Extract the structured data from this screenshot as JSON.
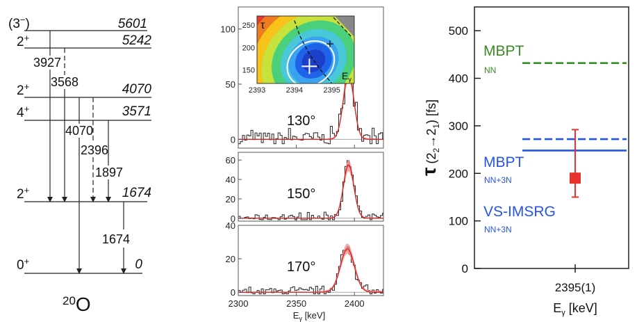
{
  "level_scheme": {
    "nucleus": {
      "mass": "20",
      "symbol": "O"
    },
    "levels": [
      {
        "jpi_main": "(3",
        "jpi_sup": "−",
        "jpi_close": ")",
        "energy": "5601"
      },
      {
        "jpi_main": "2",
        "jpi_sup": "+",
        "jpi_close": "",
        "energy": "5242"
      },
      {
        "jpi_main": "2",
        "jpi_sup": "+",
        "jpi_close": "",
        "energy": "4070"
      },
      {
        "jpi_main": "4",
        "jpi_sup": "+",
        "jpi_close": "",
        "energy": "3571"
      },
      {
        "jpi_main": "2",
        "jpi_sup": "+",
        "jpi_close": "",
        "energy": "1674"
      },
      {
        "jpi_main": "0",
        "jpi_sup": "+",
        "jpi_close": "",
        "energy": "0"
      }
    ],
    "transitions": [
      {
        "label": "3927"
      },
      {
        "label": "3568"
      },
      {
        "label": "4070"
      },
      {
        "label": "2396"
      },
      {
        "label": "1897"
      },
      {
        "label": "1674"
      }
    ]
  },
  "chart_data": [
    {
      "type": "line",
      "panel": "inset",
      "y_axis_label": "τ",
      "x_axis_label_main": "E",
      "x_axis_label_sub": "γ",
      "xlim": [
        2393,
        2395.6
      ],
      "ylim": [
        120,
        270
      ],
      "x_ticks": [
        2393,
        2394,
        2395
      ],
      "y_ticks": [
        150,
        200,
        250
      ],
      "best_fit": {
        "x": 2394.4,
        "y": 158
      },
      "alt_point": {
        "x": 2394.95,
        "y": 208
      },
      "dashed_curve": {
        "x": [
          2394.0,
          2394.15,
          2394.4,
          2394.7,
          2395.0
        ],
        "y": [
          260,
          225,
          185,
          150,
          120
        ]
      }
    },
    {
      "type": "line",
      "panel": "130",
      "angle_label": "130°",
      "xlim": [
        2300,
        2425
      ],
      "ylim": [
        -8,
        120
      ],
      "x_ticks": [
        2300,
        2350,
        2400
      ],
      "y_ticks": [
        0,
        50,
        100
      ],
      "peak": {
        "center": 2395,
        "height": 60,
        "width": 4.5
      }
    },
    {
      "type": "line",
      "panel": "150",
      "angle_label": "150°",
      "xlim": [
        2300,
        2425
      ],
      "ylim": [
        -3,
        68
      ],
      "x_ticks": [
        2300,
        2350,
        2400
      ],
      "y_ticks": [
        0,
        20,
        40,
        60
      ],
      "peak": {
        "center": 2395,
        "height": 55,
        "width": 4.5
      }
    },
    {
      "type": "line",
      "panel": "170",
      "angle_label": "170°",
      "xlim": [
        2300,
        2425
      ],
      "ylim": [
        -2,
        40
      ],
      "x_ticks": [
        2300,
        2350,
        2400
      ],
      "x_tick_labels": [
        "2300",
        "2350",
        "2400"
      ],
      "y_ticks": [
        0,
        20,
        40
      ],
      "x_axis_label_main": "E",
      "x_axis_label_sub": "γ",
      "x_axis_label_unit": " [keV]",
      "peak": {
        "center": 2394,
        "height": 26,
        "width": 6
      }
    },
    {
      "type": "scatter",
      "panel": "lifetime",
      "ylim": [
        0,
        550
      ],
      "y_ticks": [
        0,
        100,
        200,
        300,
        400,
        500
      ],
      "y_axis_label": {
        "tau": "τ",
        "paren_open": "(2",
        "sub1": "2",
        "arrow": "→2",
        "sub2": "1",
        "paren_close": ")",
        "unit": " [fs]"
      },
      "x_tick_label": "2395(1)",
      "x_axis_label": {
        "main": "E",
        "sub": "γ",
        "unit": " [keV]"
      },
      "measurement": {
        "value": 190,
        "err_low": 40,
        "err_high": 102
      },
      "theory": [
        {
          "name": "MBPT",
          "sub": "NN",
          "value": 432,
          "style": "dashed",
          "color": "#3a8a23"
        },
        {
          "name": "MBPT",
          "sub": "NN+3N",
          "value": 272,
          "style": "dashed",
          "color": "#2554e8"
        },
        {
          "name": "VS-IMSRG",
          "sub": "NN+3N",
          "value": 248,
          "style": "solid",
          "color": "#2554e8"
        }
      ],
      "measurement_color": "#e8322c"
    }
  ]
}
